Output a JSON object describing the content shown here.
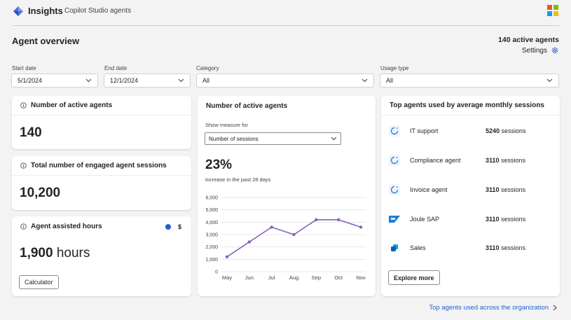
{
  "header": {
    "app_name": "Insights",
    "app_subtitle": "Copilot Studio agents",
    "brand_logo_icon": "copilot-diamond-icon",
    "ms_logo_colors": [
      "#f25022",
      "#7fba00",
      "#00a4ef",
      "#ffb900"
    ]
  },
  "overview": {
    "title": "Agent overview",
    "active_agents": "140 active agents",
    "settings_label": "Settings"
  },
  "filters": {
    "start_date": {
      "label": "Start date",
      "value": "5/1/2024"
    },
    "end_date": {
      "label": "End date",
      "value": "12/1/2024"
    },
    "category": {
      "label": "Category",
      "value": "All"
    },
    "usage_type": {
      "label": "Usage type",
      "value": "All"
    }
  },
  "cards": {
    "active_agents": {
      "title": "Number of active agents",
      "value": "140"
    },
    "engaged_sessions": {
      "title": "Total number of engaged agent sessions",
      "value": "10,200"
    },
    "assisted_hours": {
      "title": "Agent assisted hours",
      "value": "1,900",
      "unit": "hours",
      "calculator_label": "Calculator",
      "dollar_label": "$"
    }
  },
  "chart_card": {
    "title": "Number of active agents",
    "measure_label": "Show measure for",
    "measure_value": "Number of sessions",
    "percent": "23%",
    "percent_caption": "increase in the past 28 days",
    "line_color": "#8764b8"
  },
  "chart_data": {
    "type": "line",
    "categories": [
      "May",
      "Jun",
      "Jul",
      "Aug",
      "Sep",
      "Oct",
      "Nov"
    ],
    "values": [
      1200,
      2400,
      3600,
      3000,
      4200,
      4200,
      3600
    ],
    "yticks": [
      "0",
      "1,000",
      "2,000",
      "3,000",
      "4,000",
      "5,000",
      "6,000"
    ],
    "ylim": [
      0,
      6000
    ],
    "grid": true
  },
  "top_agents": {
    "title": "Top agents used by average monthly sessions",
    "items": [
      {
        "name": "IT support",
        "sessions": "5240",
        "suffix": "sessions",
        "icon": "copilot-agent-icon"
      },
      {
        "name": "Compliance agent",
        "sessions": "3110",
        "suffix": "sessions",
        "icon": "copilot-agent-icon"
      },
      {
        "name": "Invoice agent",
        "sessions": "3110",
        "suffix": "sessions",
        "icon": "copilot-agent-icon"
      },
      {
        "name": "Joule SAP",
        "sessions": "3110",
        "suffix": "sessions",
        "icon": "sap-logo-icon"
      },
      {
        "name": "Sales",
        "sessions": "3110",
        "suffix": "sessions",
        "icon": "sales-app-icon"
      }
    ],
    "explore_label": "Explore more"
  },
  "footer": {
    "link_label": "Top agents used across the organization"
  }
}
